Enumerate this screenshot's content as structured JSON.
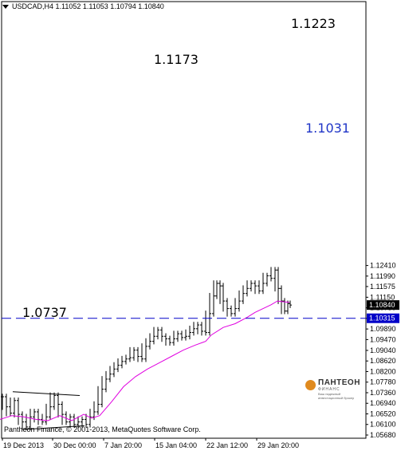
{
  "window": {
    "symbol_header": "USDCAD,H4  1.11052 1.11053 1.10794 1.10840",
    "copyright": "Pantheon Finance, © 2001-2013, MetaQuotes Software Corp."
  },
  "logo": {
    "name": "ПАНТЕОН",
    "sub": "ФИНАНС",
    "desc": "Ваш надежный инвестиционный брокер"
  },
  "annotations": [
    {
      "text": "1.1223",
      "color": "#000000"
    },
    {
      "text": "1.1173",
      "color": "#000000"
    },
    {
      "text": "1.1031",
      "color": "#1f35c7"
    },
    {
      "text": "1.0737",
      "color": "#000000"
    }
  ],
  "colors": {
    "background": "#ffffff",
    "bars": "#000000",
    "moving_average": "#e000e0",
    "level_line": "#0000c8",
    "price_label_current": "#000000",
    "price_label_level": "#0000c8"
  },
  "chart_data": {
    "type": "bar",
    "symbol": "USDCAD",
    "timeframe": "H4",
    "ohlc_header": {
      "open": 1.11052,
      "high": 1.11053,
      "low": 1.10794,
      "close": 1.1084
    },
    "price_axis_ticks": [
      "1.12410",
      "1.11990",
      "1.11575",
      "1.11150",
      "1.10730",
      "1.10310",
      "1.09890",
      "1.09470",
      "1.09040",
      "1.08620",
      "1.08200",
      "1.07780",
      "1.07360",
      "1.06940",
      "1.06520",
      "1.06100",
      "1.05680"
    ],
    "ylim": [
      1.0568,
      1.2241
    ],
    "time_axis_labels": [
      "19 Dec 2013",
      "30 Dec 00:00",
      "7 Jan 20:00",
      "15 Jan 04:00",
      "22 Jan 12:00",
      "29 Jan 20:00"
    ],
    "current_price_label": "1.10840",
    "current_price": 1.1084,
    "horizontal_level_label": "1.10315",
    "horizontal_level": 1.10315,
    "moving_average_path": [
      [
        0,
        1.063
      ],
      [
        15,
        1.0645
      ],
      [
        30,
        1.064
      ],
      [
        45,
        1.063
      ],
      [
        60,
        1.0625
      ],
      [
        75,
        1.0645
      ],
      [
        90,
        1.0625
      ],
      [
        105,
        1.065
      ],
      [
        115,
        1.0635
      ],
      [
        125,
        1.0645
      ],
      [
        140,
        1.07
      ],
      [
        155,
        1.076
      ],
      [
        170,
        1.08
      ],
      [
        185,
        1.083
      ],
      [
        200,
        1.0855
      ],
      [
        215,
        1.088
      ],
      [
        230,
        1.0905
      ],
      [
        245,
        1.0925
      ],
      [
        258,
        1.094
      ],
      [
        265,
        1.0965
      ],
      [
        280,
        1.0995
      ],
      [
        295,
        1.101
      ],
      [
        310,
        1.1035
      ],
      [
        320,
        1.1055
      ],
      [
        330,
        1.107
      ],
      [
        340,
        1.1085
      ],
      [
        348,
        1.11
      ],
      [
        355,
        1.1097
      ],
      [
        363,
        1.1095
      ]
    ],
    "price_series": [
      [
        3,
        1.072
      ],
      [
        8,
        1.068
      ],
      [
        13,
        1.0655
      ],
      [
        18,
        1.0705
      ],
      [
        23,
        1.065
      ],
      [
        28,
        1.062
      ],
      [
        33,
        1.06
      ],
      [
        38,
        1.064
      ],
      [
        43,
        1.066
      ],
      [
        48,
        1.063
      ],
      [
        53,
        1.062
      ],
      [
        58,
        1.064
      ],
      [
        63,
        1.068
      ],
      [
        68,
        1.0725
      ],
      [
        73,
        1.069
      ],
      [
        78,
        1.065
      ],
      [
        83,
        1.062
      ],
      [
        88,
        1.064
      ],
      [
        93,
        1.061
      ],
      [
        98,
        1.062
      ],
      [
        103,
        1.063
      ],
      [
        108,
        1.061
      ],
      [
        113,
        1.064
      ],
      [
        118,
        1.066
      ],
      [
        123,
        1.069
      ],
      [
        128,
        1.075
      ],
      [
        133,
        1.079
      ],
      [
        138,
        1.081
      ],
      [
        143,
        1.083
      ],
      [
        148,
        1.0845
      ],
      [
        153,
        1.086
      ],
      [
        158,
        1.087
      ],
      [
        163,
        1.0875
      ],
      [
        168,
        1.0905
      ],
      [
        173,
        1.088
      ],
      [
        178,
        1.087
      ],
      [
        183,
        1.092
      ],
      [
        188,
        1.094
      ],
      [
        193,
        1.096
      ],
      [
        198,
        1.0985
      ],
      [
        203,
        1.096
      ],
      [
        208,
        1.095
      ],
      [
        213,
        1.0935
      ],
      [
        218,
        1.095
      ],
      [
        223,
        1.097
      ],
      [
        228,
        1.0955
      ],
      [
        233,
        1.096
      ],
      [
        238,
        1.0975
      ],
      [
        243,
        1.099
      ],
      [
        248,
        1.1005
      ],
      [
        253,
        1.098
      ],
      [
        258,
        1.0975
      ],
      [
        263,
        1.105
      ],
      [
        268,
        1.112
      ],
      [
        272,
        1.117
      ],
      [
        276,
        1.116
      ],
      [
        280,
        1.11
      ],
      [
        285,
        1.107
      ],
      [
        290,
        1.105
      ],
      [
        295,
        1.107
      ],
      [
        300,
        1.11
      ],
      [
        305,
        1.113
      ],
      [
        310,
        1.115
      ],
      [
        315,
        1.117
      ],
      [
        320,
        1.116
      ],
      [
        325,
        1.114
      ],
      [
        330,
        1.117
      ],
      [
        335,
        1.12
      ],
      [
        340,
        1.119
      ],
      [
        345,
        1.1223
      ],
      [
        349,
        1.115
      ],
      [
        353,
        1.11
      ],
      [
        357,
        1.106
      ],
      [
        361,
        1.109
      ],
      [
        364,
        1.1084
      ]
    ],
    "trend_lines": [
      {
        "from": [
          16,
          1.074
        ],
        "to": [
          100,
          1.0725
        ]
      },
      {
        "from": [
          30,
          1.059
        ],
        "to": [
          106,
          1.0605
        ]
      }
    ]
  }
}
